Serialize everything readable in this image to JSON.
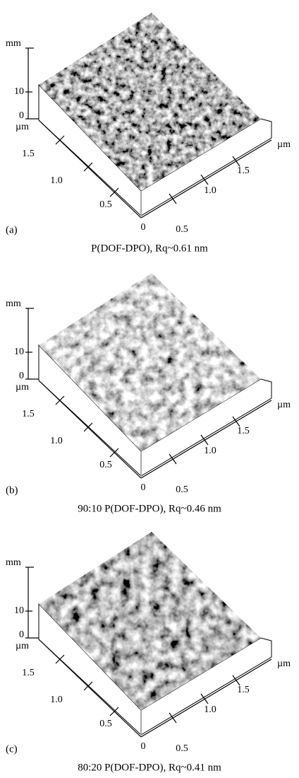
{
  "panels": [
    {
      "label": "(a)",
      "caption": "P(DOF-DPO), Rq~0.61 nm",
      "z_unit": "mm",
      "z_ticks": [
        "10",
        "0"
      ],
      "left_unit": "µm",
      "left_ticks": [
        "1.5",
        "1.0",
        "0.5"
      ],
      "origin": "0",
      "right_ticks": [
        "0.5",
        "1.0",
        "1.5"
      ],
      "right_unit": "µm"
    },
    {
      "label": "(b)",
      "caption": "90:10 P(DOF-DPO), Rq~0.46 nm",
      "z_unit": "mm",
      "z_ticks": [
        "10",
        "0"
      ],
      "left_unit": "µm",
      "left_ticks": [
        "1.5",
        "1.0",
        "0.5"
      ],
      "origin": "0",
      "right_ticks": [
        "0.5",
        "1.0",
        "1.5"
      ],
      "right_unit": "µm"
    },
    {
      "label": "(c)",
      "caption": "80:20 P(DOF-DPO), Rq~0.41 nm",
      "z_unit": "mm",
      "z_ticks": [
        "10",
        "0"
      ],
      "left_unit": "µm",
      "left_ticks": [
        "1.5",
        "1.0",
        "0.5"
      ],
      "origin": "0",
      "right_ticks": [
        "0.5",
        "1.0",
        "1.5"
      ],
      "right_unit": "µm"
    }
  ]
}
